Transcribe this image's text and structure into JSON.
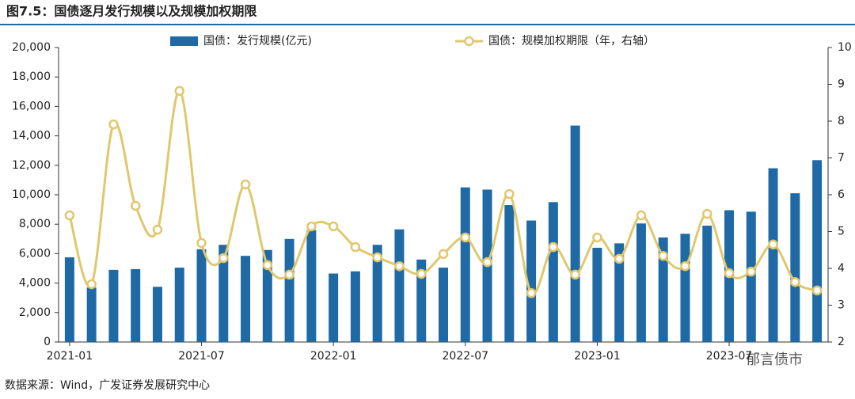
{
  "chart_data": {
    "type": "bar_line",
    "title": "图7.5：国债逐月发行规模以及规模加权期限",
    "source": "数据来源：Wind，广发证券发展研究中心",
    "watermark": "郁言债市",
    "categories": [
      "2021-01",
      null,
      null,
      null,
      null,
      null,
      "2021-07",
      null,
      null,
      null,
      null,
      null,
      "2022-01",
      null,
      null,
      null,
      null,
      null,
      "2022-07",
      null,
      null,
      null,
      null,
      null,
      "2023-01",
      null,
      null,
      null,
      null,
      null,
      "2023-07",
      null,
      null,
      null,
      null
    ],
    "series": [
      {
        "name": "国债：发行规模(亿元)",
        "type": "bar",
        "color": "#1f6aa5",
        "values": [
          5750,
          3700,
          4900,
          4950,
          3750,
          5050,
          6300,
          6600,
          5850,
          6250,
          7000,
          7600,
          4650,
          4800,
          6600,
          7650,
          5600,
          5050,
          10500,
          10350,
          9300,
          8250,
          9500,
          14700,
          6400,
          6700,
          8050,
          7100,
          7350,
          7900,
          8950,
          8850,
          11800,
          10100,
          12350
        ]
      },
      {
        "name": "国债：规模加权期限（年，右轴）",
        "type": "line",
        "axis": "y2",
        "color": "#e0c76e",
        "values": [
          5.44,
          3.57,
          7.91,
          5.7,
          5.05,
          8.82,
          4.69,
          4.28,
          6.28,
          4.09,
          3.83,
          5.14,
          5.14,
          4.58,
          4.3,
          4.06,
          3.85,
          4.39,
          4.84,
          4.17,
          6.02,
          3.33,
          4.58,
          3.83,
          4.84,
          4.26,
          5.44,
          4.34,
          4.06,
          5.48,
          3.87,
          3.91,
          4.65,
          3.63,
          3.4
        ]
      }
    ],
    "ylim": [
      0,
      20000
    ],
    "yticks": [
      0,
      {
        "value": 2000,
        "label": "2,000"
      },
      {
        "value": 4000,
        "label": "4,000"
      },
      {
        "value": 6000,
        "label": "6,000"
      },
      {
        "value": 8000,
        "label": "8,000"
      },
      {
        "value": 10000,
        "label": "10,000"
      },
      {
        "value": 12000,
        "label": "12,000"
      },
      {
        "value": 14000,
        "label": "14,000"
      },
      {
        "value": 16000,
        "label": "16,000"
      },
      {
        "value": 18000,
        "label": "18,000"
      },
      {
        "value": 20000,
        "label": "20,000"
      }
    ],
    "y2lim": [
      2,
      10
    ],
    "y2ticks": [
      2,
      3,
      4,
      5,
      6,
      7,
      8,
      9,
      10
    ],
    "grid": false,
    "legend": "top"
  }
}
